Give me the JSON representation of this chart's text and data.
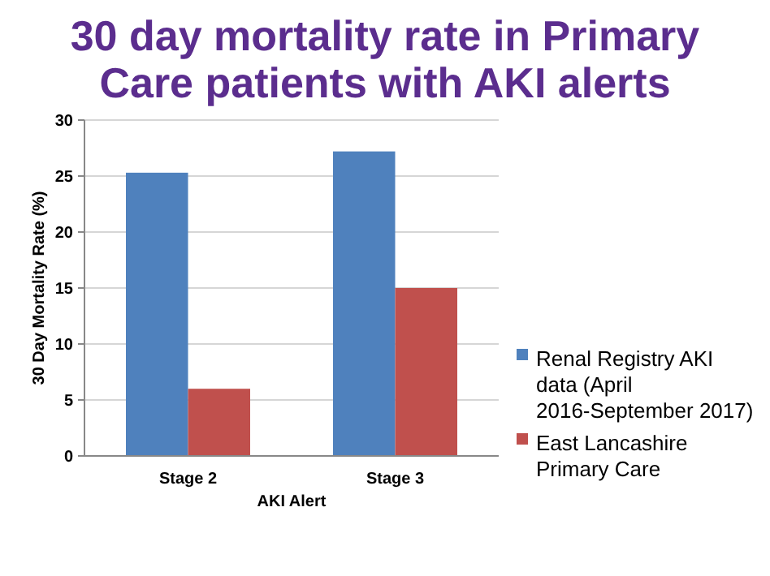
{
  "chart_data": {
    "type": "bar",
    "title": "30 day mortality rate in Primary Care patients with AKI alerts",
    "xlabel": "AKI Alert",
    "ylabel": "30  Day Mortality Rate (%)",
    "categories": [
      "Stage 2",
      "Stage 3"
    ],
    "series": [
      {
        "name": "Renal Registry AKI data (April 2016-September 2017)",
        "color": "#4f81bd",
        "values": [
          25.3,
          27.2
        ]
      },
      {
        "name": "East Lancashire Primary Care",
        "color": "#c0504d",
        "values": [
          6,
          15
        ]
      }
    ],
    "ylim": [
      0,
      30
    ],
    "yticks": [
      0,
      5,
      10,
      15,
      20,
      25,
      30
    ],
    "grid": "y",
    "legend": "right"
  }
}
